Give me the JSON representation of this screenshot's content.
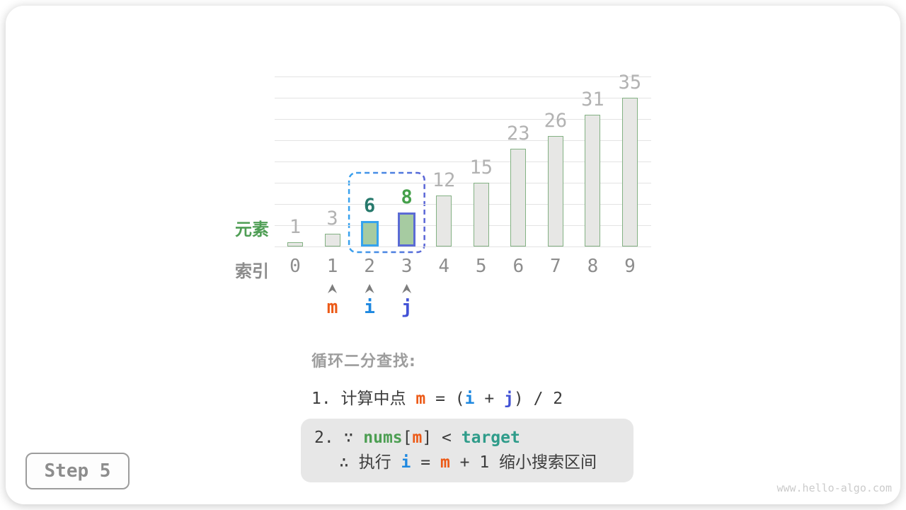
{
  "page": {
    "step_badge": "Step 5",
    "watermark": "www.hello-algo.com"
  },
  "chart_data": {
    "type": "bar",
    "categories": [
      "0",
      "1",
      "2",
      "3",
      "4",
      "5",
      "6",
      "7",
      "8",
      "9"
    ],
    "values": [
      1,
      3,
      6,
      8,
      12,
      15,
      23,
      26,
      31,
      35
    ],
    "title": "",
    "xlabel": "索引",
    "ylabel": "元素",
    "ylim": [
      0,
      40
    ],
    "gridline_step": 5,
    "grid": true,
    "bar_fill": "#e7e7e5",
    "bar_border": "#83b183",
    "value_label_color": "#b2b2b2",
    "index_label_color": "#8d8d8d",
    "highlighted_bars": [
      {
        "index": 2,
        "value": 6,
        "fill": "#a6cba1",
        "border": "#35a3ee",
        "label_color": "#27796c"
      },
      {
        "index": 3,
        "value": 8,
        "fill": "#a6cba1",
        "border": "#5b6bd5",
        "label_color": "#45a04b"
      }
    ],
    "search_window": {
      "from_index": 2,
      "to_index": 3,
      "stroke_start": "#3aa2ee",
      "stroke_end": "#5a66d6"
    },
    "pointers": [
      {
        "label": "m",
        "index": 1,
        "color": "#ec5a17"
      },
      {
        "label": "i",
        "index": 2,
        "color": "#1e88e0"
      },
      {
        "label": "j",
        "index": 3,
        "color": "#4252d6"
      }
    ],
    "ylabel_color": "#4f9e55",
    "xlabel_color": "#8c8c8c"
  },
  "annotation": {
    "heading": "循环二分查找:",
    "line1": [
      {
        "t": "1. 计算中点 "
      },
      {
        "t": "m",
        "c": "#ec5a17",
        "b": true
      },
      {
        "t": " = ("
      },
      {
        "t": "i",
        "c": "#1e88e0",
        "b": true
      },
      {
        "t": " + "
      },
      {
        "t": "j",
        "c": "#4252d6",
        "b": true
      },
      {
        "t": ") / 2"
      }
    ],
    "box_line1": [
      {
        "t": "2. ∵ "
      },
      {
        "t": "nums",
        "c": "#4c9e52",
        "b": true
      },
      {
        "t": "["
      },
      {
        "t": "m",
        "c": "#ec5a17",
        "b": true
      },
      {
        "t": "] < "
      },
      {
        "t": "target",
        "c": "#2f9c8a",
        "b": true
      }
    ],
    "box_line2": [
      {
        "t": "∴ 执行 "
      },
      {
        "t": "i",
        "c": "#1e88e0",
        "b": true
      },
      {
        "t": " = "
      },
      {
        "t": "m",
        "c": "#ec5a17",
        "b": true
      },
      {
        "t": " + 1 缩小搜索区间"
      }
    ]
  }
}
